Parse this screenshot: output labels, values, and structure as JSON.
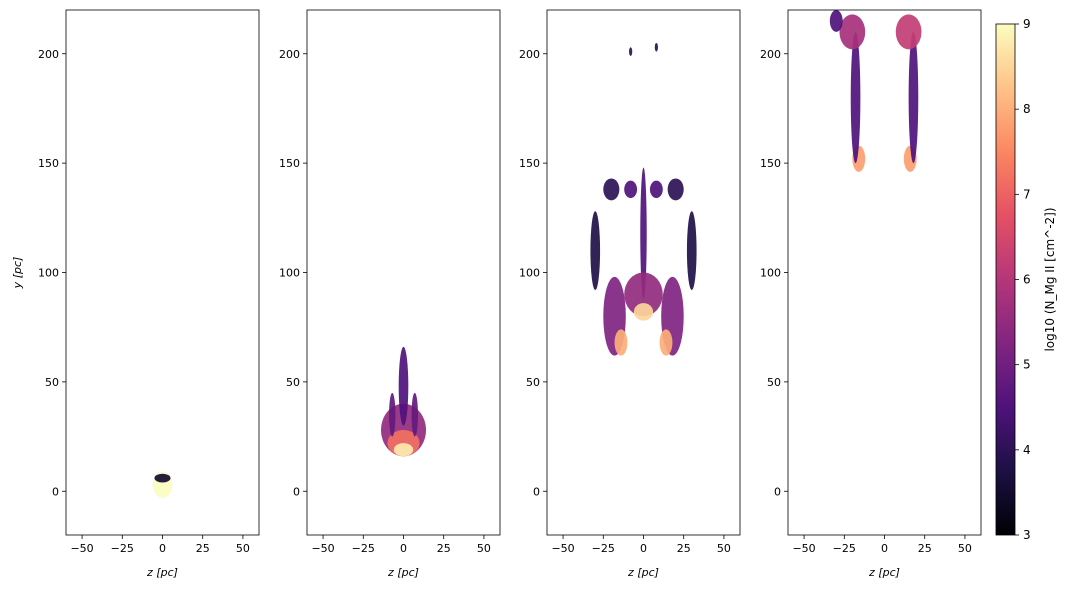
{
  "chart_data": {
    "type": "heatmap",
    "panels": [
      {
        "xlabel": "z [pc]",
        "ylabel": "y [pc]",
        "xlim": [
          -60,
          60
        ],
        "ylim": [
          -20,
          220
        ],
        "xticks": [
          -50,
          -25,
          0,
          25,
          50
        ],
        "yticks": [
          0,
          50,
          100,
          150,
          200
        ],
        "blobs": [
          {
            "z": 0,
            "y": 3,
            "rz": 6,
            "ry": 6,
            "logN": 9.0
          },
          {
            "z": 0,
            "y": 6,
            "rz": 5,
            "ry": 2,
            "logN": 3.5
          }
        ]
      },
      {
        "xlabel": "z [pc]",
        "ylabel": "",
        "xlim": [
          -60,
          60
        ],
        "ylim": [
          -20,
          220
        ],
        "xticks": [
          -50,
          -25,
          0,
          25,
          50
        ],
        "yticks": [
          0,
          50,
          100,
          150,
          200
        ],
        "blobs": [
          {
            "z": 0,
            "y": 28,
            "rz": 14,
            "ry": 12,
            "logN": 5.5
          },
          {
            "z": 0,
            "y": 22,
            "rz": 10,
            "ry": 6,
            "logN": 7.2
          },
          {
            "z": 0,
            "y": 19,
            "rz": 6,
            "ry": 3,
            "logN": 8.8
          },
          {
            "z": 0,
            "y": 48,
            "rz": 3,
            "ry": 18,
            "logN": 4.5
          },
          {
            "z": -7,
            "y": 35,
            "rz": 2,
            "ry": 10,
            "logN": 4.8
          },
          {
            "z": 7,
            "y": 35,
            "rz": 2,
            "ry": 10,
            "logN": 4.8
          }
        ]
      },
      {
        "xlabel": "z [pc]",
        "ylabel": "",
        "xlim": [
          -60,
          60
        ],
        "ylim": [
          -20,
          220
        ],
        "xticks": [
          -50,
          -25,
          0,
          25,
          50
        ],
        "yticks": [
          0,
          50,
          100,
          150,
          200
        ],
        "blobs": [
          {
            "z": 0,
            "y": 118,
            "rz": 2,
            "ry": 30,
            "logN": 4.5
          },
          {
            "z": 0,
            "y": 90,
            "rz": 12,
            "ry": 10,
            "logN": 5.5
          },
          {
            "z": 0,
            "y": 82,
            "rz": 6,
            "ry": 4,
            "logN": 8.5
          },
          {
            "z": -18,
            "y": 80,
            "rz": 7,
            "ry": 18,
            "logN": 5.2
          },
          {
            "z": -14,
            "y": 68,
            "rz": 4,
            "ry": 6,
            "logN": 8.0
          },
          {
            "z": 18,
            "y": 80,
            "rz": 7,
            "ry": 18,
            "logN": 5.2
          },
          {
            "z": 14,
            "y": 68,
            "rz": 4,
            "ry": 6,
            "logN": 8.0
          },
          {
            "z": -30,
            "y": 110,
            "rz": 3,
            "ry": 18,
            "logN": 3.8
          },
          {
            "z": 30,
            "y": 110,
            "rz": 3,
            "ry": 18,
            "logN": 3.8
          },
          {
            "z": -20,
            "y": 138,
            "rz": 5,
            "ry": 5,
            "logN": 4.0
          },
          {
            "z": 20,
            "y": 138,
            "rz": 5,
            "ry": 5,
            "logN": 4.0
          },
          {
            "z": -8,
            "y": 138,
            "rz": 4,
            "ry": 4,
            "logN": 4.5
          },
          {
            "z": 8,
            "y": 138,
            "rz": 4,
            "ry": 4,
            "logN": 4.5
          },
          {
            "z": -8,
            "y": 201,
            "rz": 1,
            "ry": 2,
            "logN": 4.0
          },
          {
            "z": 8,
            "y": 203,
            "rz": 1,
            "ry": 2,
            "logN": 4.0
          }
        ]
      },
      {
        "xlabel": "z [pc]",
        "ylabel": "",
        "xlim": [
          -60,
          60
        ],
        "ylim": [
          -20,
          220
        ],
        "xticks": [
          -50,
          -25,
          0,
          25,
          50
        ],
        "yticks": [
          0,
          50,
          100,
          150,
          200
        ],
        "blobs": [
          {
            "z": -16,
            "y": 152,
            "rz": 4,
            "ry": 6,
            "logN": 7.8
          },
          {
            "z": 16,
            "y": 152,
            "rz": 4,
            "ry": 6,
            "logN": 7.8
          },
          {
            "z": -18,
            "y": 180,
            "rz": 3,
            "ry": 30,
            "logN": 4.5
          },
          {
            "z": 18,
            "y": 180,
            "rz": 3,
            "ry": 30,
            "logN": 4.5
          },
          {
            "z": -20,
            "y": 210,
            "rz": 8,
            "ry": 8,
            "logN": 5.8
          },
          {
            "z": 15,
            "y": 210,
            "rz": 8,
            "ry": 8,
            "logN": 6.2
          },
          {
            "z": -30,
            "y": 215,
            "rz": 4,
            "ry": 5,
            "logN": 4.5
          }
        ]
      }
    ],
    "colorbar": {
      "label": "log10 (N_Mg II [cm^-2])",
      "range": [
        3,
        9
      ],
      "ticks": [
        3,
        4,
        5,
        6,
        7,
        8,
        9
      ],
      "colormap": "magma"
    }
  }
}
